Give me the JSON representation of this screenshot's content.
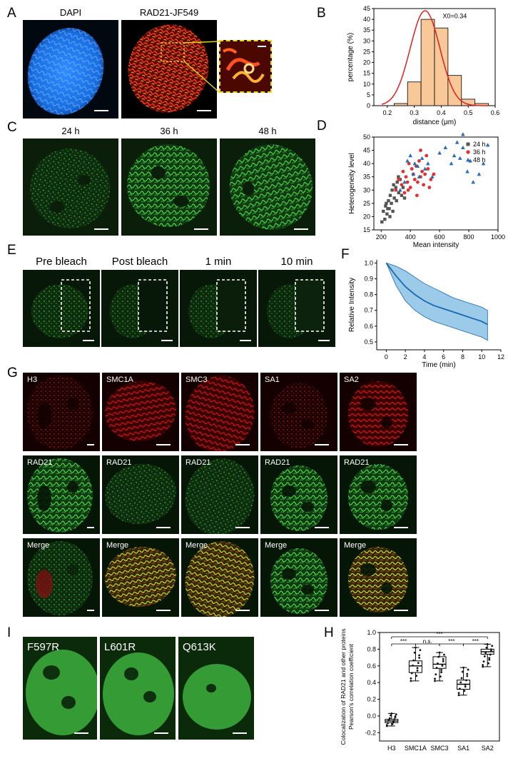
{
  "panel_labels": {
    "A": "A",
    "B": "B",
    "C": "C",
    "D": "D",
    "E": "E",
    "F": "F",
    "G": "G",
    "H": "H",
    "I": "I"
  },
  "panelA": {
    "titles": [
      "DAPI",
      "RAD21-JF549"
    ]
  },
  "panelC": {
    "titles": [
      "24 h",
      "36 h",
      "48 h"
    ]
  },
  "panelE": {
    "titles": [
      "Pre bleach",
      "Post bleach",
      "1 min",
      "10 min"
    ]
  },
  "panelG": {
    "row1": [
      "H3",
      "SMC1A",
      "SMC3",
      "SA1",
      "SA2"
    ],
    "row2": [
      "RAD21",
      "RAD21",
      "RAD21",
      "RAD21",
      "RAD21"
    ],
    "row3": [
      "Merge",
      "Merge",
      "Merge",
      "Merge",
      "Merge"
    ]
  },
  "panelI": {
    "titles": [
      "F597R",
      "L601R",
      "Q613K"
    ]
  },
  "colors": {
    "dapi": "#1e7ff0",
    "red": "#e02010",
    "green": "#3cc83c",
    "hist_bar": "#f8c898",
    "fit": "#e02020",
    "s24": "#555555",
    "s36": "#e03030",
    "s48": "#2a6ab8",
    "band": "#5aa8dc",
    "line": "#1a68b0"
  },
  "chart_data": [
    {
      "id": "B",
      "type": "bar",
      "categories": [
        "0.25",
        "0.30",
        "0.35",
        "0.40",
        "0.45",
        "0.50",
        "0.55"
      ],
      "values": [
        1,
        11,
        40,
        36,
        14,
        3,
        1
      ],
      "annotations": [
        "X0=0.34"
      ],
      "xlabel": "distance (μm)",
      "ylabel": "percentage (%)",
      "xlim": [
        0.15,
        0.6
      ],
      "ylim": [
        0,
        45
      ],
      "xticks": [
        "0.2",
        "0.3",
        "0.4",
        "0.5",
        "0.6"
      ],
      "yticks": [
        "0",
        "5",
        "10",
        "15",
        "20",
        "25",
        "30",
        "35",
        "40",
        "45"
      ]
    },
    {
      "id": "D",
      "type": "scatter",
      "xlabel": "Mean intensity",
      "ylabel": "Heterogeneity level",
      "xlim": [
        150,
        1000
      ],
      "ylim": [
        15,
        50
      ],
      "xticks": [
        "200",
        "400",
        "600",
        "800",
        "1000"
      ],
      "yticks": [
        "15",
        "20",
        "25",
        "30",
        "35",
        "40",
        "45",
        "50"
      ],
      "legend": "top-right",
      "series": [
        {
          "name": "24 h",
          "points": [
            [
              205,
              18
            ],
            [
              215,
              22
            ],
            [
              225,
              19
            ],
            [
              230,
              24
            ],
            [
              240,
              21
            ],
            [
              250,
              26
            ],
            [
              255,
              23
            ],
            [
              262,
              28
            ],
            [
              270,
              25
            ],
            [
              275,
              30
            ],
            [
              280,
              22
            ],
            [
              290,
              27
            ],
            [
              300,
              31
            ],
            [
              305,
              26
            ],
            [
              310,
              33
            ],
            [
              320,
              29
            ],
            [
              330,
              34
            ],
            [
              340,
              28
            ],
            [
              350,
              31
            ],
            [
              360,
              27
            ],
            [
              235,
              25
            ],
            [
              260,
              20
            ],
            [
              285,
              32
            ],
            [
              245,
              23
            ],
            [
              318,
              35
            ]
          ]
        },
        {
          "name": "36 h",
          "points": [
            [
              300,
              30
            ],
            [
              320,
              34
            ],
            [
              340,
              32
            ],
            [
              350,
              37
            ],
            [
              360,
              29
            ],
            [
              370,
              35
            ],
            [
              380,
              33
            ],
            [
              390,
              40
            ],
            [
              400,
              31
            ],
            [
              410,
              38
            ],
            [
              420,
              36
            ],
            [
              430,
              34
            ],
            [
              440,
              39
            ],
            [
              450,
              33
            ],
            [
              460,
              41
            ],
            [
              470,
              35
            ],
            [
              480,
              37
            ],
            [
              490,
              32
            ],
            [
              500,
              36
            ],
            [
              510,
              43
            ],
            [
              520,
              38
            ],
            [
              530,
              31
            ],
            [
              540,
              34
            ],
            [
              560,
              36
            ],
            [
              470,
              45
            ],
            [
              385,
              30
            ],
            [
              445,
              28
            ]
          ]
        },
        {
          "name": "48 h",
          "points": [
            [
              330,
              30
            ],
            [
              360,
              33
            ],
            [
              380,
              41
            ],
            [
              400,
              43
            ],
            [
              420,
              36
            ],
            [
              430,
              40
            ],
            [
              450,
              39
            ],
            [
              460,
              35
            ],
            [
              480,
              42
            ],
            [
              500,
              38
            ],
            [
              520,
              40
            ],
            [
              550,
              35
            ],
            [
              600,
              44
            ],
            [
              640,
              46
            ],
            [
              680,
              40
            ],
            [
              700,
              43
            ],
            [
              720,
              48
            ],
            [
              740,
              42
            ],
            [
              760,
              46
            ],
            [
              790,
              37
            ],
            [
              810,
              41
            ],
            [
              830,
              33
            ],
            [
              870,
              36
            ],
            [
              900,
              40
            ],
            [
              930,
              47
            ],
            [
              760,
              51
            ]
          ]
        }
      ]
    },
    {
      "id": "F",
      "type": "line",
      "xlabel": "Time (min)",
      "ylabel": "Relative Intensity",
      "xlim": [
        -1,
        12
      ],
      "ylim": [
        0.45,
        1.02
      ],
      "xticks": [
        "0",
        "2",
        "4",
        "6",
        "8",
        "10",
        "12"
      ],
      "yticks": [
        "0.5",
        "0.6",
        "0.7",
        "0.8",
        "0.9",
        "1.0"
      ],
      "series": [
        {
          "name": "",
          "x": [
            0,
            1,
            2,
            3,
            4,
            5,
            6,
            7,
            8,
            9,
            10,
            10.6
          ],
          "mean": [
            1.0,
            0.92,
            0.85,
            0.8,
            0.76,
            0.73,
            0.71,
            0.69,
            0.67,
            0.65,
            0.63,
            0.61
          ],
          "upper": [
            1.0,
            0.98,
            0.95,
            0.91,
            0.87,
            0.84,
            0.81,
            0.78,
            0.76,
            0.74,
            0.72,
            0.7
          ],
          "lower": [
            1.0,
            0.86,
            0.76,
            0.7,
            0.66,
            0.63,
            0.61,
            0.59,
            0.57,
            0.55,
            0.53,
            0.51
          ]
        }
      ]
    },
    {
      "id": "H",
      "type": "box",
      "ylabel": "Colocalization of RAD21 and other proteins\nPearson's correlation coefficient",
      "categories": [
        "H3",
        "SMC1A",
        "SMC3",
        "SA1",
        "SA2"
      ],
      "ylim": [
        -0.3,
        1.0
      ],
      "yticks": [
        "-0.2",
        "0",
        "0.2",
        "0.4",
        "0.6",
        "0.8",
        "1.0"
      ],
      "yticklabels": [
        "-0.2",
        "0.0",
        "0.2",
        "0.4",
        "0.6",
        "0.8",
        "1.0"
      ],
      "boxes": [
        {
          "min": -0.12,
          "q1": -0.08,
          "median": -0.06,
          "q3": -0.04,
          "max": 0.03
        },
        {
          "min": 0.42,
          "q1": 0.52,
          "median": 0.6,
          "q3": 0.66,
          "max": 0.82
        },
        {
          "min": 0.42,
          "q1": 0.57,
          "median": 0.62,
          "q3": 0.71,
          "max": 0.76
        },
        {
          "min": 0.25,
          "q1": 0.32,
          "median": 0.38,
          "q3": 0.43,
          "max": 0.58
        },
        {
          "min": 0.59,
          "q1": 0.74,
          "median": 0.77,
          "q3": 0.8,
          "max": 0.86
        }
      ],
      "significance": [
        {
          "from": 0,
          "to": 1,
          "label": "***"
        },
        {
          "from": 1,
          "to": 2,
          "label": "n.s."
        },
        {
          "from": 2,
          "to": 3,
          "label": "***"
        },
        {
          "from": 3,
          "to": 4,
          "label": "***"
        },
        {
          "from": 0,
          "to": 4,
          "label": "***"
        }
      ]
    }
  ]
}
